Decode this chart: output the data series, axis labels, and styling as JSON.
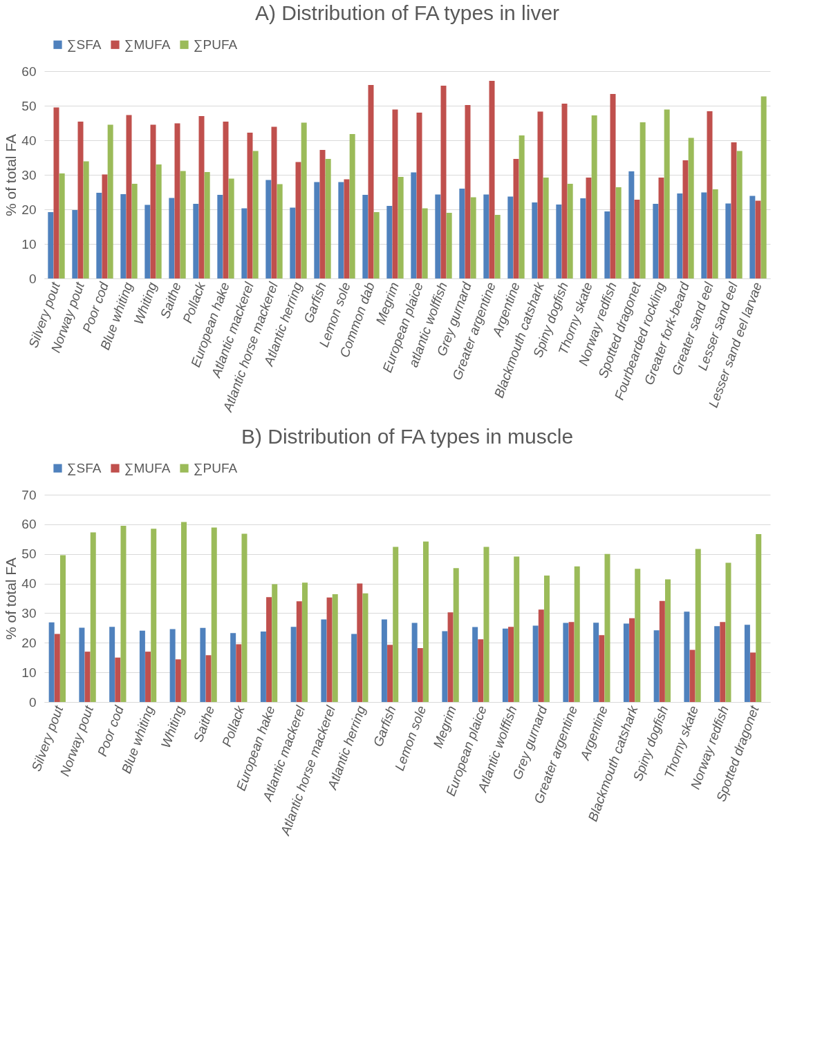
{
  "chart_data": [
    {
      "type": "bar",
      "title": "A) Distribution of FA types in liver",
      "ylabel": "% of total FA",
      "legend": "top",
      "grid": "y",
      "ylim": [
        0,
        60
      ],
      "yticks": [
        0,
        10,
        20,
        30,
        40,
        50,
        60
      ],
      "categories": [
        "Silvery pout",
        "Norway pout",
        "Poor cod",
        "Blue whiting",
        "Whiting",
        "Saithe",
        "Pollack",
        "European hake",
        "Atlantic mackerel",
        "Atlantic horse mackerel",
        "Atlantic herring",
        "Garfish",
        "Lemon sole",
        "Common dab",
        "Megrim",
        "European plaice",
        "atlantic wolffish",
        "Grey gurnard",
        "Greater argentine",
        "Argentine",
        "Blackmouth catshark",
        "Spiny dogfish",
        "Thorny skate",
        "Norway redfish",
        "Spotted dragonet",
        "Fourbearded rockling",
        "Greater fork-beard",
        "Greater sand eel",
        "Lesser sand eel",
        "Lesser sand eel larvae"
      ],
      "series": [
        {
          "name": "∑SFA",
          "color": "#4f81bd",
          "values": [
            19.2,
            19.8,
            24.8,
            24.4,
            21.3,
            23.3,
            21.6,
            24.2,
            20.3,
            28.5,
            20.5,
            27.9,
            27.9,
            24.2,
            21.0,
            30.7,
            24.3,
            26.0,
            24.3,
            23.7,
            22.0,
            21.4,
            23.2,
            19.4,
            31.0,
            21.6,
            24.6,
            24.9,
            21.7,
            23.9
          ]
        },
        {
          "name": "∑MUFA",
          "color": "#c0504d",
          "values": [
            49.5,
            45.4,
            30.1,
            47.3,
            44.5,
            44.9,
            47.0,
            45.4,
            42.2,
            43.9,
            33.7,
            37.2,
            28.7,
            56.0,
            48.9,
            48.0,
            55.8,
            50.2,
            57.2,
            34.6,
            48.3,
            50.6,
            29.2,
            53.4,
            22.8,
            29.2,
            34.2,
            48.4,
            39.4,
            22.5
          ]
        },
        {
          "name": "∑PUFA",
          "color": "#9bbb59",
          "values": [
            30.4,
            33.9,
            44.5,
            27.4,
            33.0,
            31.1,
            30.8,
            28.9,
            36.9,
            27.3,
            45.1,
            34.6,
            41.8,
            19.2,
            29.4,
            20.3,
            19.0,
            23.5,
            18.4,
            41.4,
            29.2,
            27.4,
            47.2,
            26.4,
            45.2,
            48.9,
            40.7,
            25.8,
            36.9,
            52.7
          ]
        }
      ]
    },
    {
      "type": "bar",
      "title": "B) Distribution of FA types in muscle",
      "ylabel": "% of total FA",
      "legend": "top",
      "grid": "y",
      "ylim": [
        0,
        70
      ],
      "yticks": [
        0,
        10,
        20,
        30,
        40,
        50,
        60,
        70
      ],
      "categories": [
        "Silvery pout",
        "Norway pout",
        "Poor cod",
        "Blue whiting",
        "Whiting",
        "Saithe",
        "Pollack",
        "European hake",
        "Atlantic mackerel",
        "Atlantic horse mackerel",
        "Atlantic herring",
        "Garfish",
        "Lemon sole",
        "Megrim",
        "European plaice",
        "Atlantic wolffish",
        "Grey gurnard",
        "Greater argentine",
        "Argentine",
        "Blackmouth catshark",
        "Spiny dogfish",
        "Thorny skate",
        "Norway redfish",
        "Spotted dragonet"
      ],
      "series": [
        {
          "name": "∑SFA",
          "color": "#4f81bd",
          "values": [
            26.9,
            25.1,
            25.4,
            24.1,
            24.6,
            25.0,
            23.3,
            23.8,
            25.4,
            27.9,
            23.0,
            27.9,
            26.7,
            23.9,
            25.3,
            24.8,
            25.8,
            26.7,
            26.8,
            26.5,
            24.2,
            30.5,
            25.6,
            26.1
          ]
        },
        {
          "name": "∑MUFA",
          "color": "#c0504d",
          "values": [
            23.0,
            17.0,
            15.0,
            17.0,
            14.4,
            15.8,
            19.5,
            35.4,
            34.0,
            35.3,
            40.0,
            19.3,
            18.2,
            30.3,
            21.2,
            25.4,
            31.2,
            27.0,
            22.6,
            28.3,
            34.1,
            17.6,
            27.0,
            16.7
          ]
        },
        {
          "name": "∑PUFA",
          "color": "#9bbb59",
          "values": [
            49.6,
            57.3,
            59.5,
            58.5,
            60.8,
            58.9,
            56.8,
            39.8,
            40.3,
            36.4,
            36.7,
            52.4,
            54.2,
            45.2,
            52.4,
            49.1,
            42.7,
            45.8,
            50.0,
            45.0,
            41.4,
            51.7,
            47.0,
            56.7
          ]
        }
      ]
    }
  ]
}
